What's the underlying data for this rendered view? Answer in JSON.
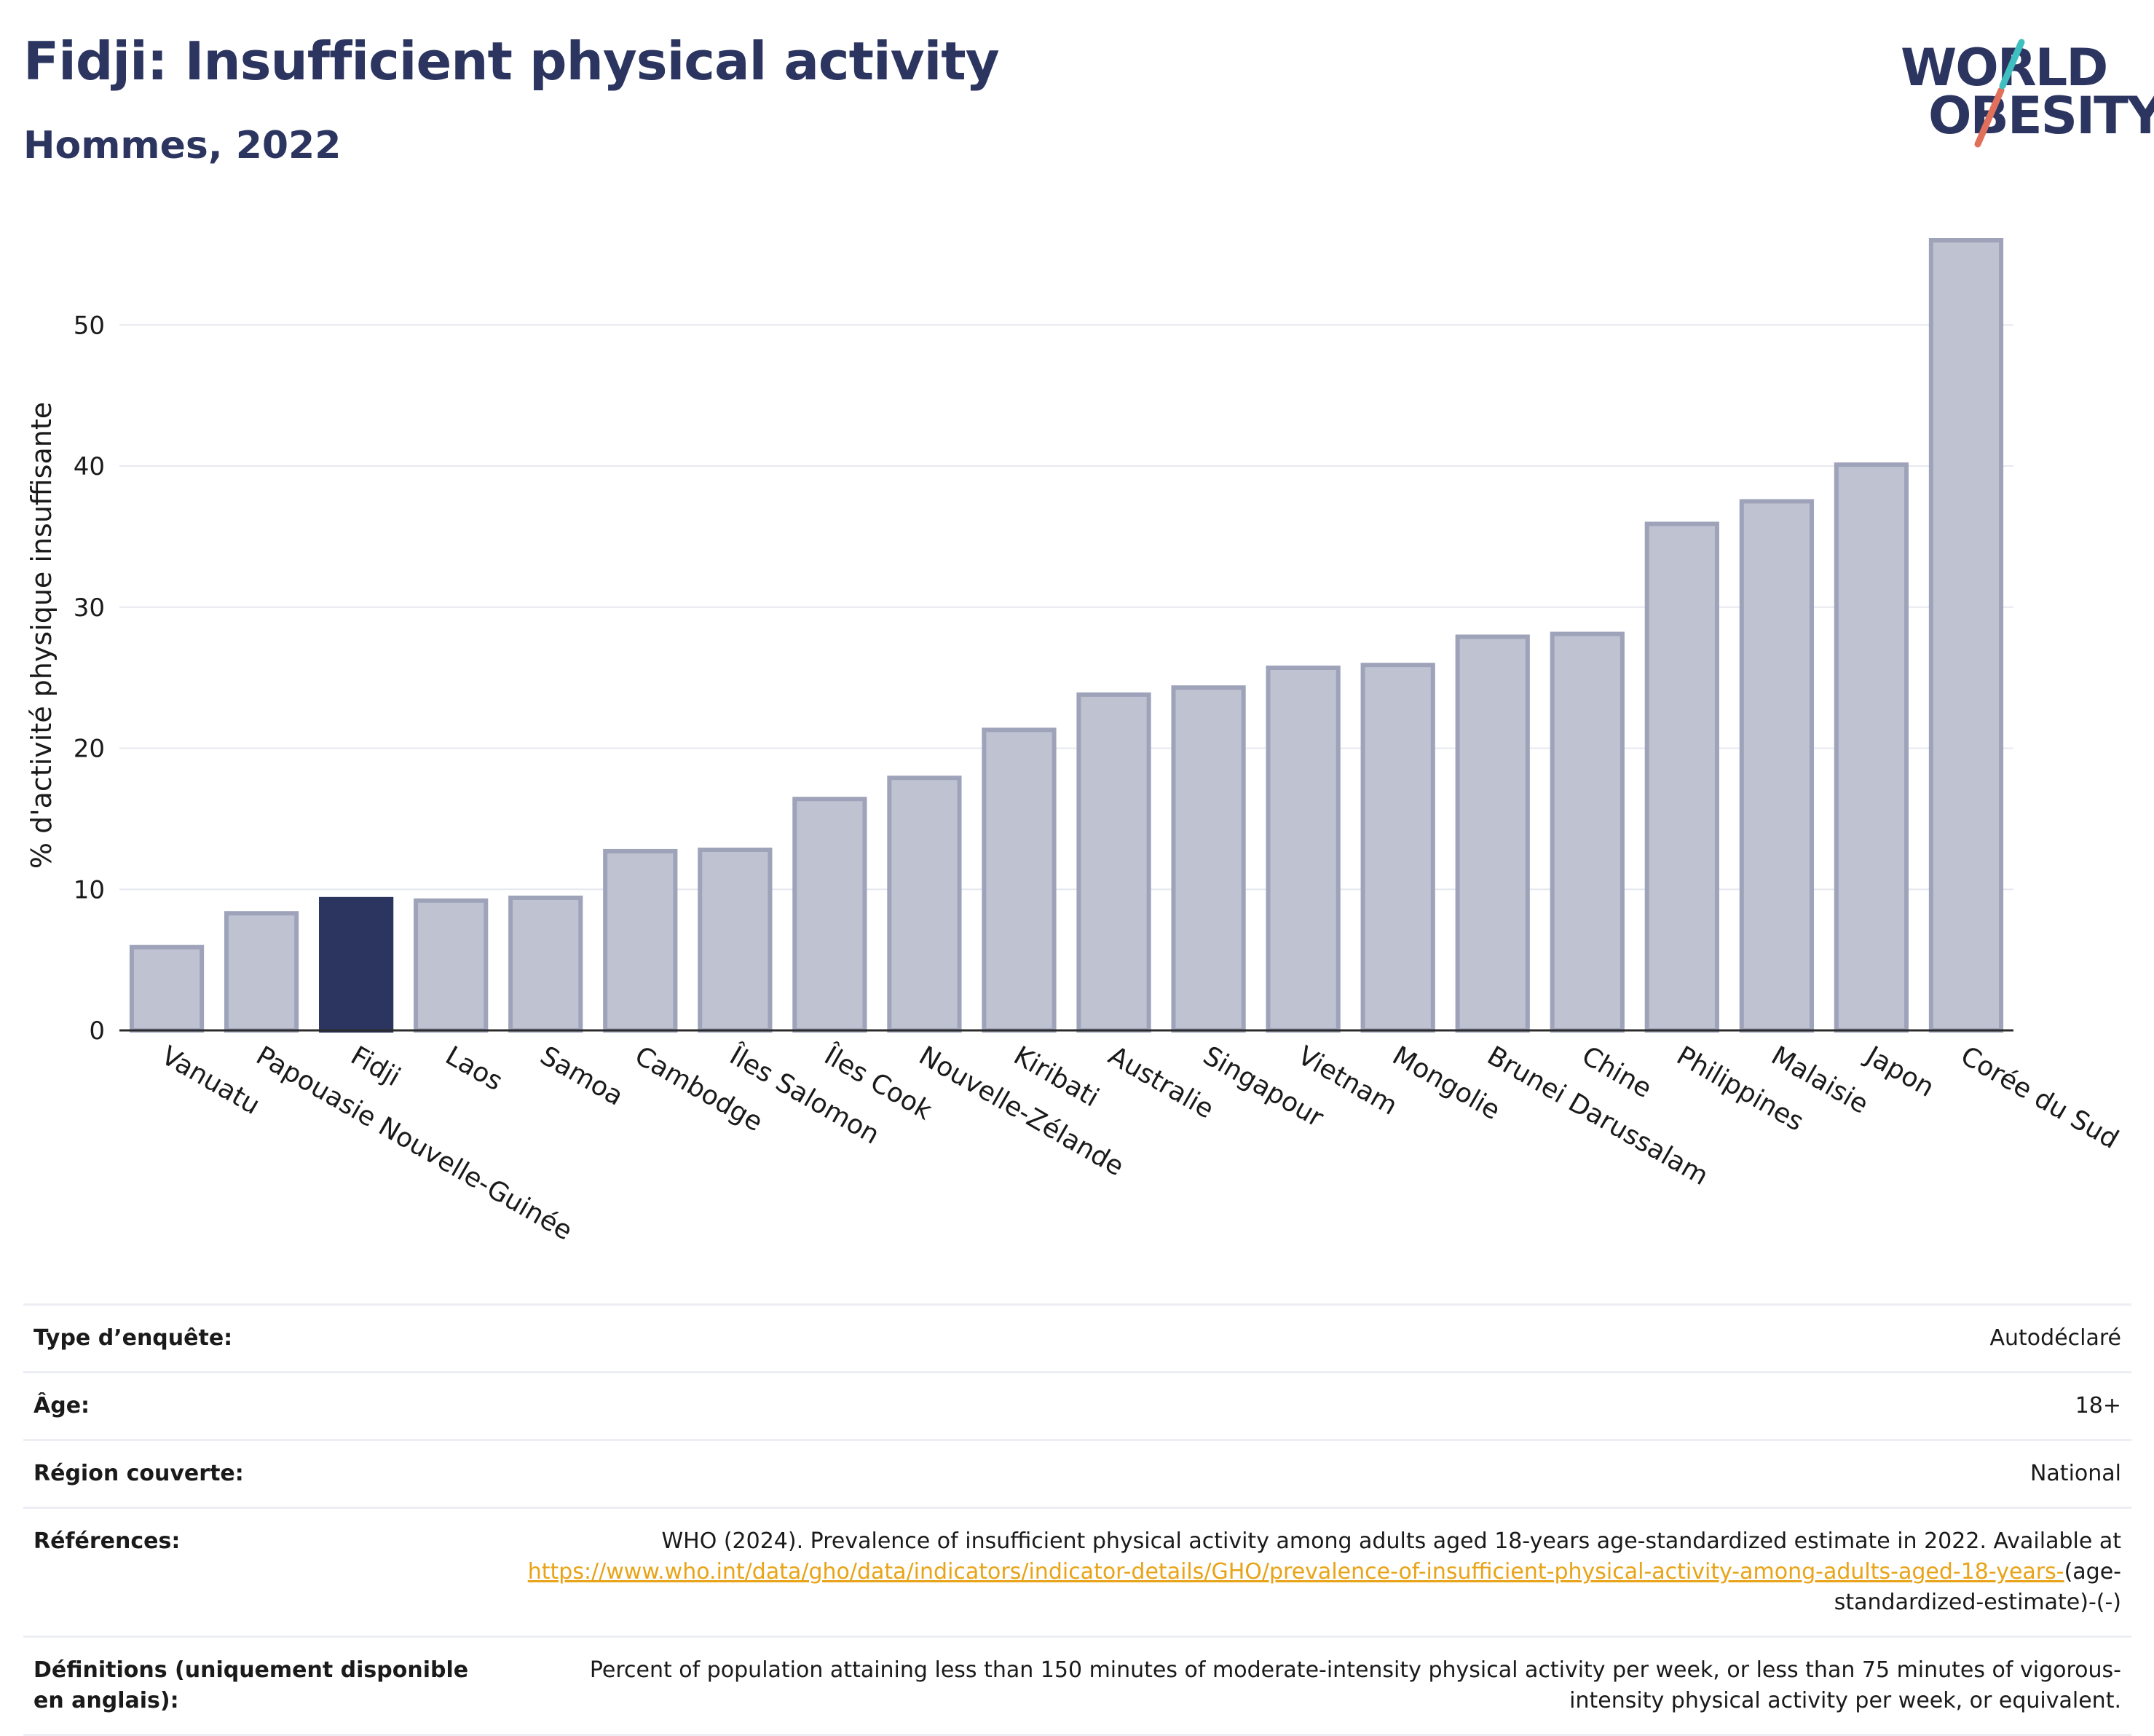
{
  "header": {
    "title": "Fidji: Insufficient physical activity",
    "subtitle": "Hommes, 2022"
  },
  "logo": {
    "line1": "WORLD",
    "line2": "OBESITY"
  },
  "chart_data": {
    "type": "bar",
    "ylabel": "% d'activité physique insuffisante",
    "ylim": [
      0,
      56
    ],
    "yticks": [
      0,
      10,
      20,
      30,
      40,
      50
    ],
    "grid": true,
    "highlight": "Fidji",
    "colors": {
      "bar": "#bfc2d0",
      "bar_edge": "#9ea3ba",
      "highlight": "#2b3560"
    },
    "categories": [
      "Vanuatu",
      "Papouasie Nouvelle-Guinée",
      "Fidji",
      "Laos",
      "Samoa",
      "Cambodge",
      "Îles Salomon",
      "Îles Cook",
      "Nouvelle-Zélande",
      "Kiribati",
      "Australie",
      "Singapour",
      "Vietnam",
      "Mongolie",
      "Brunei Darussalam",
      "Chine",
      "Philippines",
      "Malaisie",
      "Japon",
      "Corée du Sud"
    ],
    "values": [
      5.9,
      8.3,
      9.3,
      9.2,
      9.4,
      12.7,
      12.8,
      16.4,
      17.9,
      21.3,
      23.8,
      24.3,
      25.7,
      25.9,
      27.9,
      28.1,
      35.9,
      37.5,
      40.1,
      56.0
    ]
  },
  "info": [
    {
      "label": "Type d’enquête:",
      "value": "Autodéclaré"
    },
    {
      "label": "Âge:",
      "value": "18+"
    },
    {
      "label": "Région couverte:",
      "value": "National"
    },
    {
      "label": "Références:",
      "value_pre": "WHO (2024). Prevalence of insufficient physical activity among adults aged 18-years age-standardized estimate in 2022. Available at ",
      "link": "https://www.who.int/data/gho/data/indicators/indicator-details/GHO/prevalence-of-insufficient-physical-activity-among-adults-aged-18-years-",
      "value_post": "(age-standardized-estimate)-(-)"
    },
    {
      "label": "Définitions (uniquement disponible en anglais):",
      "value": "Percent of population attaining less than 150 minutes of moderate-intensity physical activity per week, or less than 75 minutes of vigorous-intensity physical activity per week, or equivalent."
    }
  ]
}
